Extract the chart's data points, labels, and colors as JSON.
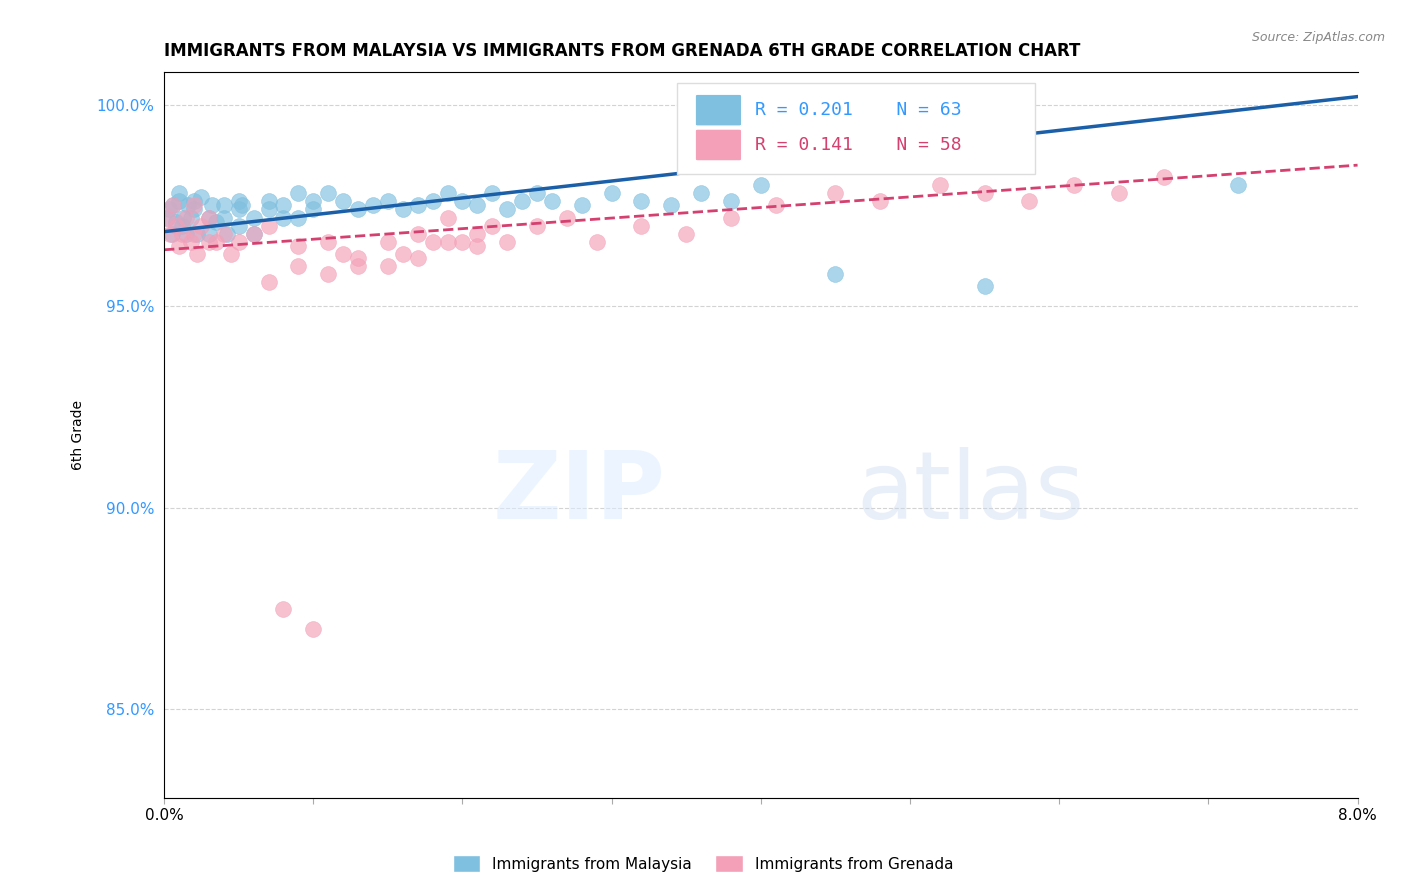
{
  "title": "IMMIGRANTS FROM MALAYSIA VS IMMIGRANTS FROM GRENADA 6TH GRADE CORRELATION CHART",
  "source": "Source: ZipAtlas.com",
  "ylabel": "6th Grade",
  "xmin": 0.0,
  "xmax": 0.08,
  "ymin": 0.828,
  "ymax": 1.008,
  "yticks": [
    0.85,
    0.9,
    0.95,
    1.0
  ],
  "ytick_labels": [
    "85.0%",
    "90.0%",
    "95.0%",
    "100.0%"
  ],
  "xticks": [
    0.0,
    0.01,
    0.02,
    0.03,
    0.04,
    0.05,
    0.06,
    0.07,
    0.08
  ],
  "legend_malaysia": "Immigrants from Malaysia",
  "legend_grenada": "Immigrants from Grenada",
  "R_malaysia": "0.201",
  "N_malaysia": "63",
  "R_grenada": "0.141",
  "N_grenada": "58",
  "color_malaysia": "#7fbfdf",
  "color_grenada": "#f4a0b8",
  "color_malaysia_line": "#1a5fa8",
  "color_grenada_line": "#d44070",
  "malaysia_x": [
    0.0002,
    0.0003,
    0.0005,
    0.0006,
    0.0008,
    0.001,
    0.001,
    0.0012,
    0.0013,
    0.0015,
    0.0016,
    0.0018,
    0.002,
    0.002,
    0.0022,
    0.0025,
    0.003,
    0.003,
    0.0032,
    0.0035,
    0.004,
    0.004,
    0.0042,
    0.005,
    0.005,
    0.005,
    0.0052,
    0.006,
    0.006,
    0.007,
    0.007,
    0.008,
    0.008,
    0.009,
    0.009,
    0.01,
    0.01,
    0.011,
    0.012,
    0.013,
    0.014,
    0.015,
    0.016,
    0.017,
    0.018,
    0.019,
    0.02,
    0.021,
    0.022,
    0.023,
    0.024,
    0.025,
    0.026,
    0.028,
    0.03,
    0.032,
    0.034,
    0.036,
    0.038,
    0.04,
    0.045,
    0.055,
    0.072
  ],
  "malaysia_y": [
    0.972,
    0.974,
    0.968,
    0.975,
    0.971,
    0.976,
    0.978,
    0.97,
    0.972,
    0.968,
    0.975,
    0.972,
    0.976,
    0.974,
    0.968,
    0.977,
    0.972,
    0.968,
    0.975,
    0.971,
    0.975,
    0.972,
    0.968,
    0.976,
    0.974,
    0.97,
    0.975,
    0.972,
    0.968,
    0.976,
    0.974,
    0.972,
    0.975,
    0.978,
    0.972,
    0.976,
    0.974,
    0.978,
    0.976,
    0.974,
    0.975,
    0.976,
    0.974,
    0.975,
    0.976,
    0.978,
    0.976,
    0.975,
    0.978,
    0.974,
    0.976,
    0.978,
    0.976,
    0.975,
    0.978,
    0.976,
    0.975,
    0.978,
    0.976,
    0.98,
    0.958,
    0.955,
    0.98
  ],
  "grenada_x": [
    0.0002,
    0.0004,
    0.0006,
    0.0008,
    0.001,
    0.0012,
    0.0015,
    0.0018,
    0.002,
    0.002,
    0.0022,
    0.0025,
    0.003,
    0.003,
    0.0035,
    0.004,
    0.0045,
    0.005,
    0.006,
    0.007,
    0.008,
    0.009,
    0.01,
    0.011,
    0.012,
    0.013,
    0.015,
    0.016,
    0.017,
    0.018,
    0.019,
    0.02,
    0.021,
    0.022,
    0.023,
    0.025,
    0.027,
    0.029,
    0.032,
    0.035,
    0.038,
    0.041,
    0.045,
    0.048,
    0.052,
    0.055,
    0.058,
    0.061,
    0.064,
    0.067,
    0.007,
    0.009,
    0.011,
    0.013,
    0.015,
    0.017,
    0.019,
    0.021
  ],
  "grenada_y": [
    0.972,
    0.968,
    0.975,
    0.97,
    0.965,
    0.968,
    0.972,
    0.966,
    0.975,
    0.968,
    0.963,
    0.97,
    0.966,
    0.972,
    0.966,
    0.968,
    0.963,
    0.966,
    0.968,
    0.97,
    0.875,
    0.965,
    0.87,
    0.966,
    0.963,
    0.96,
    0.966,
    0.963,
    0.968,
    0.966,
    0.972,
    0.966,
    0.968,
    0.97,
    0.966,
    0.97,
    0.972,
    0.966,
    0.97,
    0.968,
    0.972,
    0.975,
    0.978,
    0.976,
    0.98,
    0.978,
    0.976,
    0.98,
    0.978,
    0.982,
    0.956,
    0.96,
    0.958,
    0.962,
    0.96,
    0.962,
    0.966,
    0.965
  ]
}
